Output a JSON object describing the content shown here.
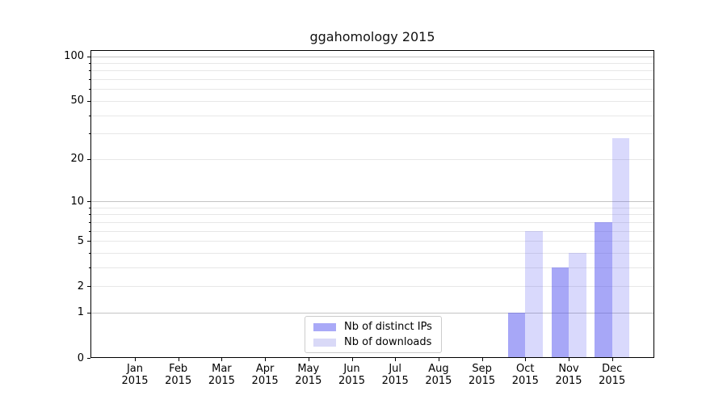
{
  "figure": {
    "background": "#ffffff"
  },
  "chart_data": {
    "type": "bar",
    "title": "ggahomology 2015",
    "xlabel": "",
    "ylabel": "",
    "categories": [
      "Jan 2015",
      "Feb 2015",
      "Mar 2015",
      "Apr 2015",
      "May 2015",
      "Jun 2015",
      "Jul 2015",
      "Aug 2015",
      "Sep 2015",
      "Oct 2015",
      "Nov 2015",
      "Dec 2015"
    ],
    "series": [
      {
        "name": "Nb of distinct IPs",
        "color": "#a9a9f7",
        "fill": "rgba(80,80,240,0.5)",
        "values": [
          0,
          0,
          0,
          0,
          0,
          0,
          0,
          0,
          0,
          1,
          3,
          7
        ]
      },
      {
        "name": "Nb of downloads",
        "color": "#d9d9f7",
        "fill": "rgba(80,80,240,0.22)",
        "values": [
          0,
          0,
          0,
          0,
          0,
          0,
          0,
          0,
          0,
          6,
          4,
          28
        ]
      }
    ],
    "yscale": "log1p",
    "ylim": [
      0,
      110
    ],
    "y_tick_values": [
      0,
      1,
      2,
      5,
      10,
      20,
      50,
      100
    ],
    "y_tick_labels": [
      "0",
      "1",
      "2",
      "5",
      "10",
      "20",
      "50",
      "100"
    ],
    "y_minor_ticks": [
      3,
      4,
      6,
      7,
      8,
      9,
      30,
      40,
      60,
      70,
      80,
      90
    ],
    "y_decade_ticks": [
      1,
      10,
      100
    ],
    "grid": true,
    "legend_position": "lower center"
  },
  "colors": {
    "grid_major": "#c4c4c4",
    "grid_minor": "#e7e7e7",
    "axis": "#000000",
    "legend_border": "#cccccc",
    "text": "#000000"
  }
}
